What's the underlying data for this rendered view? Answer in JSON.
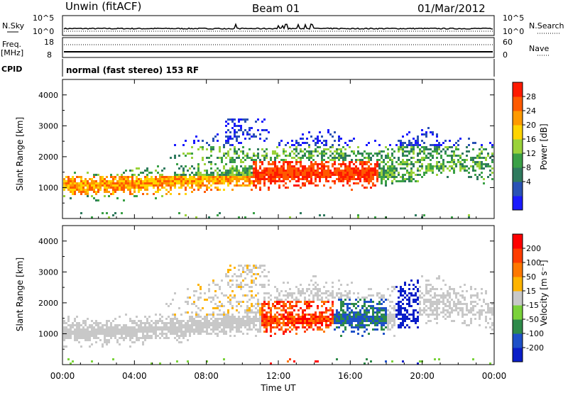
{
  "header": {
    "station": "Unwin (fitACF)",
    "beam": "Beam 01",
    "date": "01/Mar/2012"
  },
  "noise_panel": {
    "left_label": "N.Sky",
    "right_label": "N.Search",
    "left_ticks": [
      "10^5",
      "10^0"
    ],
    "right_ticks": [
      "10^5",
      "10^0"
    ]
  },
  "freq_panel": {
    "left_label": "Freq.",
    "left_unit": "[MHz]",
    "right_label": "Nave",
    "left_ticks": [
      "18",
      "8"
    ],
    "right_ticks": [
      "60",
      "0"
    ]
  },
  "cpid": {
    "label": "CPID",
    "text": "normal (fast stereo) 153 RF"
  },
  "chart_data": [
    {
      "type": "heatmap",
      "title": "",
      "xlabel": "",
      "ylabel": "Slant Range [km]",
      "x_range_hours": [
        0,
        24
      ],
      "ylim": [
        0,
        4500
      ],
      "yticks": [
        "4000",
        "3000",
        "2000",
        "1000"
      ],
      "colorbar": {
        "label": "Power [dB]",
        "ticks": [
          "28",
          "24",
          "20",
          "16",
          "12",
          "8",
          "4"
        ],
        "colors": [
          "#1a1aff",
          "#2a52b5",
          "#2f7a5e",
          "#3aa046",
          "#9ad23a",
          "#ffd400",
          "#ff9a00",
          "#ff5a00",
          "#ff1a00"
        ]
      }
    },
    {
      "type": "heatmap",
      "title": "",
      "xlabel": "Time UT",
      "ylabel": "Slant Range [km]",
      "x_range_hours": [
        0,
        24
      ],
      "ylim": [
        0,
        4500
      ],
      "yticks": [
        "4000",
        "3000",
        "2000",
        "1000"
      ],
      "xticks": [
        "00:00",
        "04:00",
        "08:00",
        "12:00",
        "16:00",
        "20:00",
        "00:00"
      ],
      "colorbar": {
        "label": "Velocity [m s⁻¹]",
        "ticks": [
          "200",
          "100",
          "50",
          "15",
          "-15",
          "-50",
          "-100",
          "-200"
        ],
        "colors": [
          "#0a1ec8",
          "#1e50c8",
          "#2e8a4a",
          "#7ad23a",
          "#c8c8c8",
          "#ffb400",
          "#ff7800",
          "#ff3c00",
          "#ff0000"
        ]
      }
    }
  ]
}
